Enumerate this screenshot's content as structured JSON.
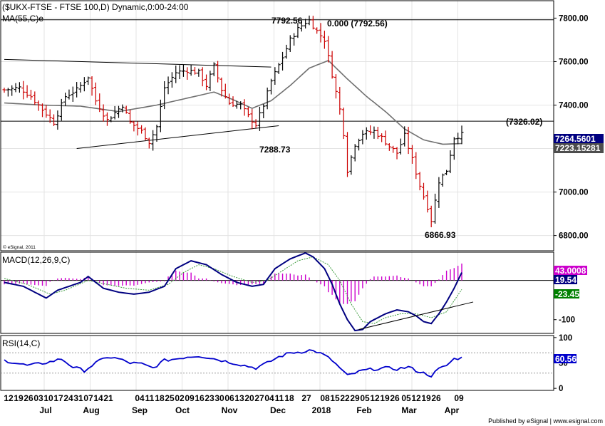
{
  "footer": {
    "published": "Published by eSignal | www.esignal.com"
  },
  "colors": {
    "up": "#000000",
    "down": "#cc0000",
    "ma": "#707070",
    "macd": "#000080",
    "signal": "#3a9a3a",
    "histogram": "#cc00cc",
    "rsi": "#0000cc",
    "price_tag": "#000080",
    "ma_tag": "#4d4d4d",
    "macd_tag_pos": "#cc00cc",
    "macd_tag_sig": "#008000",
    "rsi_tag": "#0000cc"
  },
  "chart_data": [
    {
      "type": "candlestick",
      "title": "($UKX-FTSE - FTSE 100,D) Dynamic,0:00-24:00",
      "indicator_label": "MA(55,C)e",
      "copyright": "© eSignal, 2011",
      "ylim": [
        6730,
        7880
      ],
      "yticks": [
        6800,
        7000,
        7200,
        7400,
        7600,
        7800
      ],
      "ytick_labels": [
        "6800.00",
        "7000.00",
        "7200.00",
        "7400.00",
        "7600.00",
        "7800.00"
      ],
      "x_ticks_top": [
        "12",
        "19",
        "26",
        "03",
        "10",
        "17",
        "24",
        "31",
        "07",
        "14",
        "21",
        "04",
        "11",
        "18",
        "25",
        "02",
        "09",
        "16",
        "23",
        "30",
        "06",
        "13",
        "20",
        "27",
        "04",
        "11",
        "18",
        "27",
        "08",
        "15",
        "22",
        "29",
        "05",
        "12",
        "19",
        "26",
        "05",
        "12",
        "19",
        "26",
        "09"
      ],
      "x_months": [
        "Jul",
        "Aug",
        "Sep",
        "Oct",
        "Nov",
        "Dec",
        "2018",
        "Feb",
        "Mar",
        "Apr"
      ],
      "last_price": "7264.5601",
      "ma_value": "7223.15281",
      "horizontal_levels": [
        7792.56,
        7326.02
      ],
      "annotations": [
        {
          "text": "7792.56",
          "value": 7792.56
        },
        {
          "text": "0.000 (7792.56)",
          "value": 7792.56
        },
        {
          "text": "(7326.02)",
          "value": 7326.02
        },
        {
          "text": "7288.73",
          "value": 7288.73
        },
        {
          "text": "6866.93",
          "value": 6866.93
        }
      ],
      "trendlines": [
        {
          "from": [
            0,
            7610
          ],
          "to": [
            70,
            7575
          ]
        },
        {
          "from": [
            19,
            7200
          ],
          "to": [
            72,
            7305
          ]
        }
      ],
      "close_anchors": [
        [
          0,
          7470
        ],
        [
          4,
          7480
        ],
        [
          7,
          7440
        ],
        [
          10,
          7380
        ],
        [
          13,
          7320
        ],
        [
          16,
          7440
        ],
        [
          19,
          7470
        ],
        [
          22,
          7530
        ],
        [
          24,
          7420
        ],
        [
          27,
          7330
        ],
        [
          31,
          7400
        ],
        [
          33,
          7320
        ],
        [
          36,
          7280
        ],
        [
          38,
          7230
        ],
        [
          40,
          7300
        ],
        [
          42,
          7480
        ],
        [
          45,
          7550
        ],
        [
          48,
          7560
        ],
        [
          51,
          7550
        ],
        [
          53,
          7490
        ],
        [
          55,
          7580
        ],
        [
          57,
          7470
        ],
        [
          59,
          7410
        ],
        [
          62,
          7400
        ],
        [
          64,
          7350
        ],
        [
          66,
          7310
        ],
        [
          68,
          7400
        ],
        [
          70,
          7510
        ],
        [
          73,
          7620
        ],
        [
          75,
          7700
        ],
        [
          77,
          7750
        ],
        [
          79,
          7780
        ],
        [
          80,
          7790
        ],
        [
          82,
          7740
        ],
        [
          84,
          7700
        ],
        [
          86,
          7540
        ],
        [
          88,
          7380
        ],
        [
          89,
          7270
        ],
        [
          90,
          7100
        ],
        [
          92,
          7220
        ],
        [
          94,
          7270
        ],
        [
          97,
          7280
        ],
        [
          99,
          7250
        ],
        [
          101,
          7210
        ],
        [
          103,
          7180
        ],
        [
          105,
          7260
        ],
        [
          107,
          7150
        ],
        [
          109,
          7030
        ],
        [
          111,
          6930
        ],
        [
          112,
          6870
        ],
        [
          114,
          7050
        ],
        [
          116,
          7100
        ],
        [
          118,
          7250
        ],
        [
          120,
          7265
        ]
      ],
      "ma_anchors": [
        [
          0,
          7410
        ],
        [
          10,
          7400
        ],
        [
          20,
          7395
        ],
        [
          30,
          7370
        ],
        [
          40,
          7400
        ],
        [
          50,
          7440
        ],
        [
          55,
          7460
        ],
        [
          60,
          7425
        ],
        [
          65,
          7385
        ],
        [
          70,
          7420
        ],
        [
          75,
          7490
        ],
        [
          80,
          7570
        ],
        [
          85,
          7605
        ],
        [
          90,
          7520
        ],
        [
          95,
          7440
        ],
        [
          100,
          7370
        ],
        [
          105,
          7290
        ],
        [
          110,
          7240
        ],
        [
          115,
          7220
        ],
        [
          120,
          7223
        ]
      ]
    },
    {
      "type": "macd",
      "label": "MACD(12,26,9,C)",
      "ylim": [
        -135,
        72
      ],
      "yticks": [
        -100
      ],
      "ytick_labels": [
        "-100"
      ],
      "histogram_value": "43.0008",
      "macd_value": "19.54",
      "signal_value": "-23.45",
      "macd_anchors": [
        [
          0,
          -5
        ],
        [
          5,
          -15
        ],
        [
          11,
          -45
        ],
        [
          14,
          -25
        ],
        [
          20,
          -5
        ],
        [
          22,
          10
        ],
        [
          26,
          -20
        ],
        [
          30,
          -30
        ],
        [
          34,
          -35
        ],
        [
          38,
          -30
        ],
        [
          42,
          -15
        ],
        [
          45,
          30
        ],
        [
          49,
          50
        ],
        [
          53,
          40
        ],
        [
          57,
          15
        ],
        [
          61,
          -5
        ],
        [
          65,
          -15
        ],
        [
          68,
          -10
        ],
        [
          71,
          30
        ],
        [
          75,
          55
        ],
        [
          79,
          70
        ],
        [
          81,
          60
        ],
        [
          84,
          30
        ],
        [
          86,
          -10
        ],
        [
          88,
          -60
        ],
        [
          90,
          -100
        ],
        [
          92,
          -128
        ],
        [
          94,
          -125
        ],
        [
          96,
          -105
        ],
        [
          98,
          -95
        ],
        [
          100,
          -85
        ],
        [
          103,
          -75
        ],
        [
          106,
          -80
        ],
        [
          108,
          -90
        ],
        [
          110,
          -105
        ],
        [
          112,
          -110
        ],
        [
          114,
          -85
        ],
        [
          116,
          -55
        ],
        [
          118,
          -20
        ],
        [
          120,
          20
        ]
      ],
      "signal_anchors": [
        [
          0,
          5
        ],
        [
          6,
          -10
        ],
        [
          12,
          -35
        ],
        [
          16,
          -25
        ],
        [
          22,
          0
        ],
        [
          27,
          -10
        ],
        [
          32,
          -20
        ],
        [
          38,
          -25
        ],
        [
          43,
          -10
        ],
        [
          47,
          20
        ],
        [
          51,
          40
        ],
        [
          55,
          30
        ],
        [
          60,
          10
        ],
        [
          65,
          -5
        ],
        [
          69,
          0
        ],
        [
          73,
          25
        ],
        [
          77,
          50
        ],
        [
          81,
          60
        ],
        [
          85,
          40
        ],
        [
          88,
          0
        ],
        [
          91,
          -60
        ],
        [
          94,
          -105
        ],
        [
          97,
          -110
        ],
        [
          100,
          -95
        ],
        [
          104,
          -85
        ],
        [
          108,
          -85
        ],
        [
          112,
          -95
        ],
        [
          116,
          -80
        ],
        [
          120,
          -23
        ]
      ],
      "trendline": {
        "from": [
          93,
          -125
        ],
        "to": [
          123,
          -55
        ]
      }
    },
    {
      "type": "rsi",
      "label": "RSI(14,C)",
      "ylim": [
        -4,
        104
      ],
      "yticks": [
        0,
        50,
        100
      ],
      "ytick_labels": [
        "0",
        "50",
        "100"
      ],
      "guide_levels": [
        70,
        30
      ],
      "value": "60.56",
      "rsi_anchors": [
        [
          0,
          55
        ],
        [
          3,
          50
        ],
        [
          6,
          45
        ],
        [
          9,
          48
        ],
        [
          12,
          52
        ],
        [
          15,
          58
        ],
        [
          18,
          42
        ],
        [
          21,
          35
        ],
        [
          24,
          50
        ],
        [
          27,
          62
        ],
        [
          30,
          58
        ],
        [
          33,
          50
        ],
        [
          36,
          48
        ],
        [
          39,
          40
        ],
        [
          42,
          55
        ],
        [
          45,
          58
        ],
        [
          48,
          62
        ],
        [
          51,
          64
        ],
        [
          54,
          60
        ],
        [
          57,
          55
        ],
        [
          60,
          50
        ],
        [
          63,
          45
        ],
        [
          66,
          40
        ],
        [
          69,
          50
        ],
        [
          72,
          62
        ],
        [
          75,
          70
        ],
        [
          78,
          72
        ],
        [
          80,
          75
        ],
        [
          82,
          72
        ],
        [
          84,
          65
        ],
        [
          86,
          55
        ],
        [
          88,
          40
        ],
        [
          90,
          25
        ],
        [
          92,
          30
        ],
        [
          94,
          35
        ],
        [
          97,
          38
        ],
        [
          100,
          40
        ],
        [
          103,
          38
        ],
        [
          106,
          42
        ],
        [
          108,
          35
        ],
        [
          110,
          30
        ],
        [
          112,
          25
        ],
        [
          114,
          38
        ],
        [
          116,
          45
        ],
        [
          118,
          58
        ],
        [
          120,
          60
        ]
      ]
    }
  ]
}
